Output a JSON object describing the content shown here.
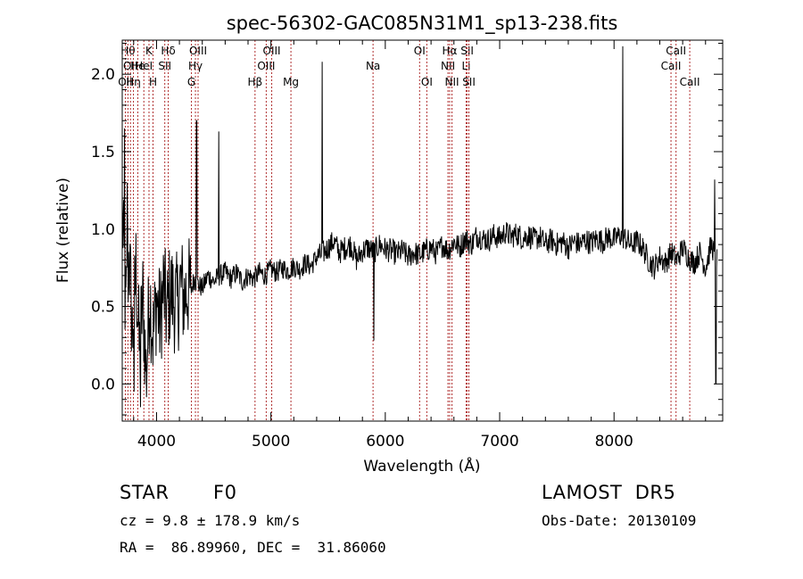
{
  "chart_data": {
    "type": "line",
    "title": "spec-56302-GAC085N31M1_sp13-238.fits",
    "xlabel": "Wavelength (Å)",
    "ylabel": "Flux (relative)",
    "xlim": [
      3700,
      8950
    ],
    "ylim": [
      -0.24,
      2.22
    ],
    "xticks": [
      4000,
      5000,
      6000,
      7000,
      8000
    ],
    "yticks": [
      0.0,
      0.5,
      1.0,
      1.5,
      2.0
    ],
    "xtick_labels": [
      "4000",
      "5000",
      "6000",
      "7000",
      "8000"
    ],
    "ytick_labels": [
      "0.0",
      "0.5",
      "1.0",
      "1.5",
      "2.0"
    ],
    "grid": false,
    "series": [
      {
        "x": [
          3700,
          3730,
          3760,
          3790,
          3820,
          3850,
          3880,
          3910,
          3940,
          3970,
          4000,
          4030,
          4060,
          4090,
          4120,
          4150,
          4180,
          4210,
          4240,
          4270,
          4300,
          4330,
          4350,
          4400,
          4450,
          4500,
          4550,
          4600,
          4650,
          4700,
          4750,
          4800,
          4850,
          4900,
          4950,
          5000,
          5050,
          5100,
          5150,
          5200,
          5250,
          5300,
          5350,
          5400,
          5450,
          5500,
          5550,
          5600,
          5650,
          5700,
          5750,
          5800,
          5850,
          5900,
          5950,
          6000,
          6050,
          6100,
          6150,
          6200,
          6250,
          6300,
          6350,
          6400,
          6450,
          6500,
          6550,
          6600,
          6650,
          6700,
          6750,
          6800,
          6850,
          6900,
          6950,
          7000,
          7050,
          7100,
          7150,
          7200,
          7250,
          7300,
          7350,
          7400,
          7450,
          7500,
          7550,
          7600,
          7650,
          7700,
          7750,
          7800,
          7850,
          7900,
          7950,
          8000,
          8050,
          8100,
          8150,
          8200,
          8250,
          8300,
          8350,
          8400,
          8450,
          8500,
          8550,
          8600,
          8650,
          8700,
          8750,
          8800,
          8850,
          8900
        ],
        "y": [
          1.1,
          0.45,
          0.85,
          0.3,
          0.75,
          0.2,
          0.55,
          0.05,
          0.6,
          0.3,
          0.55,
          0.4,
          0.62,
          0.45,
          0.6,
          0.55,
          0.5,
          0.65,
          0.55,
          0.62,
          0.6,
          0.68,
          0.65,
          0.62,
          0.7,
          0.66,
          0.7,
          0.72,
          0.68,
          0.72,
          0.66,
          0.7,
          0.68,
          0.72,
          0.7,
          0.74,
          0.72,
          0.75,
          0.73,
          0.76,
          0.74,
          0.78,
          0.76,
          0.82,
          0.84,
          0.88,
          0.92,
          0.85,
          0.88,
          0.9,
          0.8,
          0.86,
          0.88,
          0.85,
          0.9,
          0.87,
          0.86,
          0.84,
          0.86,
          0.82,
          0.85,
          0.83,
          0.86,
          0.88,
          0.84,
          0.9,
          0.86,
          0.92,
          0.88,
          0.94,
          0.9,
          0.96,
          0.94,
          0.93,
          0.96,
          0.94,
          0.98,
          0.95,
          0.97,
          0.94,
          0.96,
          0.93,
          0.95,
          0.9,
          0.93,
          0.9,
          0.92,
          0.88,
          0.92,
          0.9,
          0.93,
          0.91,
          0.94,
          0.92,
          0.95,
          0.93,
          0.96,
          0.94,
          0.9,
          0.92,
          0.88,
          0.8,
          0.75,
          0.82,
          0.78,
          0.85,
          0.8,
          0.88,
          0.82,
          0.78,
          0.85,
          0.75,
          0.9,
          0.8
        ],
        "spikes": [
          {
            "x": 3720,
            "y": 1.65
          },
          {
            "x": 3745,
            "y": 1.3
          },
          {
            "x": 3805,
            "y": -0.05
          },
          {
            "x": 3860,
            "y": -0.15
          },
          {
            "x": 4350,
            "y": 1.7
          },
          {
            "x": 4545,
            "y": 1.63
          },
          {
            "x": 5447,
            "y": 2.08
          },
          {
            "x": 5900,
            "y": 0.28
          },
          {
            "x": 8075,
            "y": 2.18
          },
          {
            "x": 8880,
            "y": 1.32
          },
          {
            "x": 8890,
            "y": 0.0
          }
        ]
      }
    ],
    "line_markers": [
      {
        "x": 3727,
        "labels": [
          "OII"
        ],
        "row": 2
      },
      {
        "x": 3750,
        "labels": [
          "Hθ"
        ],
        "row": 0
      },
      {
        "x": 3772,
        "labels": [
          "OII"
        ],
        "row": 1
      },
      {
        "x": 3798,
        "labels": [
          "Hη"
        ],
        "row": 2
      },
      {
        "x": 3836,
        "labels": [
          "He"
        ],
        "row": 1
      },
      {
        "x": 3889,
        "labels": [
          "HeI"
        ],
        "row": 1
      },
      {
        "x": 3934,
        "labels": [
          "K"
        ],
        "row": 0
      },
      {
        "x": 3969,
        "labels": [
          "H"
        ],
        "row": 2
      },
      {
        "x": 4072,
        "labels": [
          "SII"
        ],
        "row": 1
      },
      {
        "x": 4102,
        "labels": [
          "Hδ"
        ],
        "row": 0
      },
      {
        "x": 4305,
        "labels": [
          "G"
        ],
        "row": 2
      },
      {
        "x": 4340,
        "labels": [
          "Hγ"
        ],
        "row": 1
      },
      {
        "x": 4363,
        "labels": [
          "OIII"
        ],
        "row": 0
      },
      {
        "x": 4861,
        "labels": [
          "Hβ"
        ],
        "row": 2
      },
      {
        "x": 4959,
        "labels": [
          "OIII"
        ],
        "row": 1
      },
      {
        "x": 5007,
        "labels": [
          "OIII"
        ],
        "row": 0
      },
      {
        "x": 5175,
        "labels": [
          "Mg"
        ],
        "row": 2
      },
      {
        "x": 5893,
        "labels": [
          "Na"
        ],
        "row": 1
      },
      {
        "x": 6300,
        "labels": [
          "OI"
        ],
        "row": 0
      },
      {
        "x": 6363,
        "labels": [
          "OI"
        ],
        "row": 2
      },
      {
        "x": 6548,
        "labels": [
          "NII"
        ],
        "row": 1
      },
      {
        "x": 6563,
        "labels": [
          "Hα"
        ],
        "row": 0
      },
      {
        "x": 6583,
        "labels": [
          "NII"
        ],
        "row": 2
      },
      {
        "x": 6707,
        "labels": [
          "Li"
        ],
        "row": 1
      },
      {
        "x": 6716,
        "labels": [
          "SII"
        ],
        "row": 0
      },
      {
        "x": 6731,
        "labels": [
          "SII"
        ],
        "row": 2
      },
      {
        "x": 8498,
        "labels": [
          "CaII"
        ],
        "row": 1
      },
      {
        "x": 8542,
        "labels": [
          "CaII"
        ],
        "row": 0
      },
      {
        "x": 8662,
        "labels": [
          "CaII"
        ],
        "row": 2
      }
    ]
  },
  "info": {
    "class_label": "STAR",
    "subclass": "F0",
    "survey": "LAMOST  DR5",
    "redshift_text": "cz = 9.8 ± 178.9 km/s",
    "obs_date_text": "Obs-Date: 20130109",
    "coords_text": "RA =  86.89960, DEC =  31.86060"
  }
}
